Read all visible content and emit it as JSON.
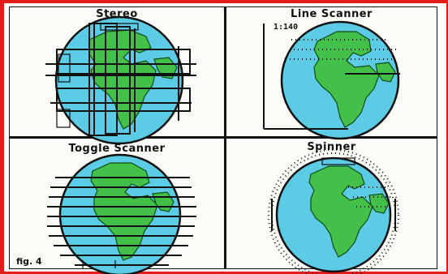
{
  "figure": {
    "label": "fig. 4"
  },
  "panels": [
    {
      "id": "stereo",
      "title": "Stereo"
    },
    {
      "id": "line-scanner",
      "title": "Line Scanner",
      "scale_label": "1:140"
    },
    {
      "id": "toggle-scanner",
      "title": "Toggle Scanner"
    },
    {
      "id": "spinner",
      "title": "Spinner"
    }
  ],
  "colors": {
    "frame": "#e31b1b",
    "ocean": "#5ccbe6",
    "land": "#43c04a",
    "ink": "#111111"
  }
}
